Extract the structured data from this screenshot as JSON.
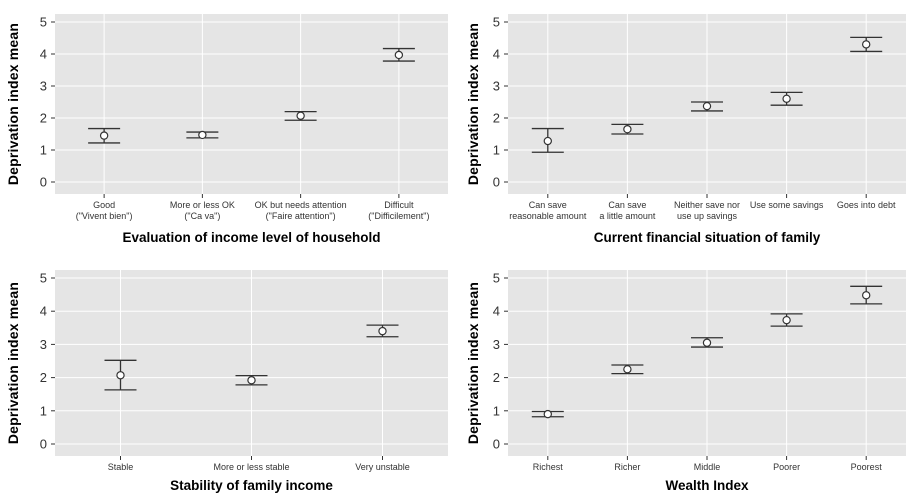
{
  "chart_data": [
    {
      "type": "scatter",
      "error_bars": true,
      "grid": true,
      "xlabel": "Evaluation of income level of household",
      "ylabel": "Deprivation index mean",
      "ylim": [
        0,
        5
      ],
      "yticks": [
        "0",
        "1",
        "2",
        "3",
        "4",
        "5"
      ],
      "categories": [
        [
          "Good",
          "(\"Vivent bien\")"
        ],
        [
          "More or less OK",
          "(\"Ca va\")"
        ],
        [
          "OK but needs attention",
          "(\"Faire attention\")"
        ],
        [
          "Difficult",
          "(\"Difficilement\")"
        ]
      ],
      "values": [
        1.45,
        1.47,
        2.07,
        3.97
      ],
      "lower": [
        1.22,
        1.38,
        1.93,
        3.78
      ],
      "upper": [
        1.67,
        1.56,
        2.2,
        4.17
      ]
    },
    {
      "type": "scatter",
      "error_bars": true,
      "grid": true,
      "xlabel": "Current financial situation of family",
      "ylabel": "Deprivation index mean",
      "ylim": [
        0,
        5
      ],
      "yticks": [
        "0",
        "1",
        "2",
        "3",
        "4",
        "5"
      ],
      "categories": [
        [
          "Can save",
          "reasonable amount"
        ],
        [
          "Can save",
          "a little amount"
        ],
        [
          "Neither save nor",
          "use up savings"
        ],
        [
          "Use some savings"
        ],
        [
          "Goes into debt"
        ]
      ],
      "values": [
        1.28,
        1.65,
        2.37,
        2.6,
        4.3
      ],
      "lower": [
        0.93,
        1.5,
        2.22,
        2.4,
        4.08
      ],
      "upper": [
        1.67,
        1.8,
        2.5,
        2.8,
        4.52
      ]
    },
    {
      "type": "scatter",
      "error_bars": true,
      "grid": true,
      "xlabel": "Stability of family income",
      "ylabel": "Deprivation index mean",
      "ylim": [
        0,
        5
      ],
      "yticks": [
        "0",
        "1",
        "2",
        "3",
        "4",
        "5"
      ],
      "categories": [
        [
          "Stable"
        ],
        [
          "More or less stable"
        ],
        [
          "Very unstable"
        ]
      ],
      "values": [
        2.07,
        1.92,
        3.4
      ],
      "lower": [
        1.63,
        1.78,
        3.23
      ],
      "upper": [
        2.52,
        2.06,
        3.58
      ]
    },
    {
      "type": "scatter",
      "error_bars": true,
      "grid": true,
      "xlabel": "Wealth Index",
      "ylabel": "Deprivation index mean",
      "ylim": [
        0,
        5
      ],
      "yticks": [
        "0",
        "1",
        "2",
        "3",
        "4",
        "5"
      ],
      "categories": [
        [
          "Richest"
        ],
        [
          "Richer"
        ],
        [
          "Middle"
        ],
        [
          "Poorer"
        ],
        [
          "Poorest"
        ]
      ],
      "values": [
        0.9,
        2.25,
        3.05,
        3.73,
        4.48
      ],
      "lower": [
        0.82,
        2.12,
        2.92,
        3.55,
        4.22
      ],
      "upper": [
        0.98,
        2.38,
        3.2,
        3.92,
        4.75
      ]
    }
  ]
}
